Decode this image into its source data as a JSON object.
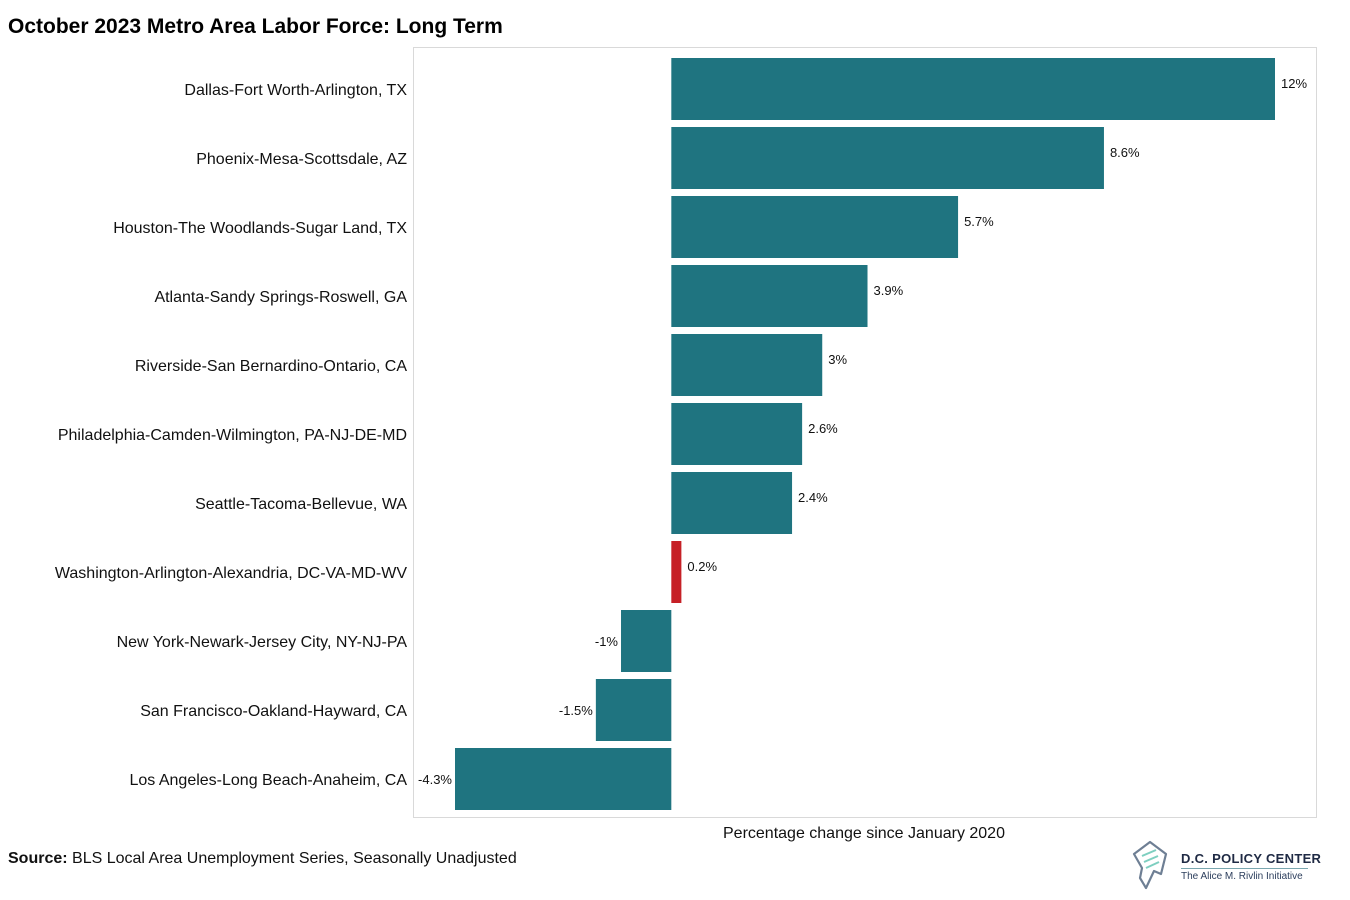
{
  "title": "October 2023 Metro Area Labor Force: Long Term",
  "source": {
    "label": "Source:",
    "text": "BLS Local Area Unemployment Series, Seasonally Unadjusted"
  },
  "logo": {
    "name": "D.C. POLICY CENTER",
    "subtitle": "The Alice M. Rivlin Initiative"
  },
  "colors": {
    "bar": "#1f7480",
    "highlight": "#c62026",
    "frame": "#d9d9d9"
  },
  "chart_data": {
    "type": "bar",
    "orientation": "horizontal",
    "title": "October 2023 Metro Area Labor Force: Long Term",
    "xlabel": "Percentage change since January 2020",
    "ylabel": "",
    "xlim": [
      -4.3,
      12
    ],
    "grid": false,
    "highlighted_category": "Washington-Arlington-Alexandria, DC-VA-MD-WV",
    "categories": [
      "Dallas-Fort Worth-Arlington, TX",
      "Phoenix-Mesa-Scottsdale, AZ",
      "Houston-The Woodlands-Sugar Land, TX",
      "Atlanta-Sandy Springs-Roswell, GA",
      "Riverside-San Bernardino-Ontario, CA",
      "Philadelphia-Camden-Wilmington, PA-NJ-DE-MD",
      "Seattle-Tacoma-Bellevue, WA",
      "Washington-Arlington-Alexandria, DC-VA-MD-WV",
      "New York-Newark-Jersey City, NY-NJ-PA",
      "San Francisco-Oakland-Hayward, CA",
      "Los Angeles-Long Beach-Anaheim, CA"
    ],
    "values": [
      12,
      8.6,
      5.7,
      3.9,
      3,
      2.6,
      2.4,
      0.2,
      -1,
      -1.5,
      -4.3
    ],
    "data_labels": [
      "12%",
      "8.6%",
      "5.7%",
      "3.9%",
      "3%",
      "2.6%",
      "2.4%",
      "0.2%",
      "-1%",
      "-1.5%",
      "-4.3%"
    ]
  }
}
